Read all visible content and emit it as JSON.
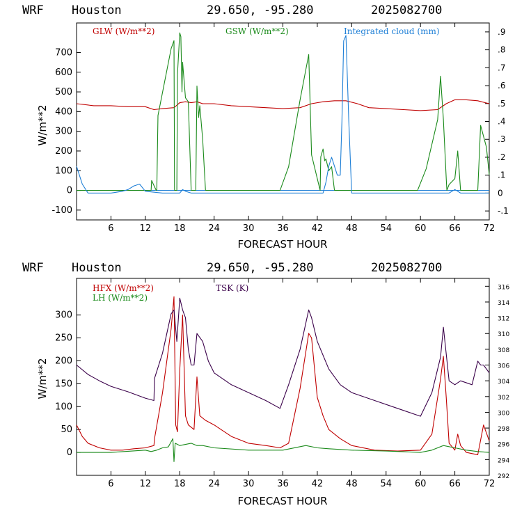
{
  "panels": [
    {
      "header": {
        "model": "WRF",
        "city": "Houston",
        "coords": "29.650, -95.280",
        "run": "2025082700"
      },
      "xlabel": "FORECAST HOUR",
      "ylabel": "W/m**2",
      "legend": {
        "glw": "GLW (W/m**2)",
        "gsw": "GSW (W/m**2)",
        "cloud": "Integrated cloud (mm)"
      }
    },
    {
      "header": {
        "model": "WRF",
        "city": "Houston",
        "coords": "29.650, -95.280",
        "run": "2025082700"
      },
      "xlabel": "FORECAST HOUR",
      "ylabel": "W/m**2",
      "legend": {
        "hfx": "HFX (W/m**2)",
        "lh": "LH  (W/m**2)",
        "tsk": "TSK (K)"
      }
    }
  ],
  "colors": {
    "red": "#c00000",
    "green": "#1a8a1a",
    "blue": "#1e7fd6",
    "purple": "#3a004a"
  },
  "chart_data": [
    {
      "type": "line",
      "title": "WRF Houston 29.650, -95.280 2025082700",
      "xlabel": "FORECAST HOUR",
      "ylabel": "W/m**2",
      "xlim": [
        0,
        72
      ],
      "ylim": [
        -150,
        850
      ],
      "xticks": [
        6,
        12,
        18,
        24,
        30,
        36,
        42,
        48,
        54,
        60,
        66,
        72
      ],
      "yticks": [
        -100,
        0,
        100,
        200,
        300,
        400,
        500,
        600,
        700
      ],
      "y2ticks": [
        -0.1,
        0,
        0.1,
        0.2,
        0.3,
        0.4,
        0.5,
        0.6,
        0.7,
        0.8,
        0.9
      ],
      "y2ticklabels": [
        "-.1",
        "0",
        ".1",
        ".2",
        ".3",
        ".4",
        ".5",
        ".6",
        ".7",
        ".8",
        ".9"
      ],
      "y2lim": [
        -0.15,
        0.95
      ],
      "series": [
        {
          "name": "GLW (W/m**2)",
          "color": "red",
          "axis": "left",
          "x": [
            0,
            3,
            6,
            9,
            12,
            13.5,
            15,
            17,
            18,
            19,
            20,
            21,
            22,
            24,
            27,
            30,
            33,
            36,
            39,
            41,
            43,
            45,
            47,
            49,
            51,
            54,
            57,
            60,
            63,
            64.5,
            66,
            68,
            70,
            72
          ],
          "y": [
            440,
            430,
            430,
            425,
            425,
            410,
            415,
            420,
            445,
            450,
            445,
            450,
            440,
            440,
            430,
            425,
            420,
            415,
            420,
            440,
            450,
            455,
            455,
            440,
            420,
            415,
            410,
            405,
            410,
            440,
            460,
            460,
            455,
            440
          ]
        },
        {
          "name": "GSW (W/m**2)",
          "color": "green",
          "axis": "left",
          "x": [
            0,
            13,
            13.1,
            13.9,
            14,
            14.2,
            16.5,
            17,
            17.1,
            17.5,
            17.6,
            18,
            18.2,
            18.4,
            18.5,
            19,
            19.5,
            20,
            20.8,
            21,
            21.3,
            21.5,
            22,
            22.3,
            22.5,
            23,
            35.5,
            37,
            39,
            40.5,
            41,
            42.5,
            42.6,
            43,
            43.3,
            43.5,
            44,
            44.5,
            45,
            59.5,
            61,
            63,
            63.5,
            64,
            64.5,
            64.6,
            65,
            66,
            66.5,
            67,
            70,
            70.5,
            71.5,
            72
          ],
          "y": [
            0,
            0,
            50,
            0,
            0,
            380,
            720,
            760,
            0,
            0,
            590,
            800,
            780,
            500,
            650,
            470,
            450,
            0,
            0,
            530,
            370,
            430,
            260,
            100,
            0,
            0,
            0,
            120,
            460,
            690,
            180,
            0,
            170,
            210,
            150,
            160,
            100,
            120,
            0,
            0,
            110,
            360,
            580,
            360,
            60,
            0,
            30,
            60,
            200,
            0,
            0,
            330,
            220,
            80
          ]
        },
        {
          "name": "Integrated cloud (mm)",
          "color": "blue",
          "axis": "right",
          "x": [
            0,
            1,
            2,
            4,
            6,
            8,
            9,
            10,
            11,
            12,
            15,
            17,
            18,
            18.5,
            19,
            20,
            24,
            30,
            35,
            38,
            41,
            43,
            43.5,
            44,
            44.5,
            45,
            45.5,
            46,
            46.3,
            46.6,
            47,
            47.5,
            48,
            54,
            60,
            65,
            66,
            67,
            72
          ],
          "y": [
            0.15,
            0.05,
            0,
            0,
            0,
            0.01,
            0.02,
            0.04,
            0.05,
            0.01,
            0,
            0,
            0,
            0.02,
            0.01,
            0,
            0,
            0,
            0,
            0,
            0,
            0,
            0.06,
            0.15,
            0.2,
            0.15,
            0.1,
            0.1,
            0.4,
            0.85,
            0.88,
            0.4,
            0,
            0,
            0,
            0,
            0.02,
            0,
            0
          ]
        }
      ]
    },
    {
      "type": "line",
      "title": "WRF Houston 29.650, -95.280 2025082700",
      "xlabel": "FORECAST HOUR",
      "ylabel": "W/m**2",
      "xlim": [
        0,
        72
      ],
      "ylim": [
        -50,
        380
      ],
      "xticks": [
        6,
        12,
        18,
        24,
        30,
        36,
        42,
        48,
        54,
        60,
        66,
        72
      ],
      "yticks": [
        0,
        50,
        100,
        150,
        200,
        250,
        300
      ],
      "y2ticks": [
        292,
        294,
        296,
        298,
        300,
        302,
        304,
        306,
        308,
        310,
        312,
        314,
        316
      ],
      "y2lim": [
        292,
        317
      ],
      "series": [
        {
          "name": "HFX (W/m**2)",
          "color": "red",
          "axis": "left",
          "x": [
            0,
            1,
            2,
            4,
            6,
            8,
            10,
            12,
            13.5,
            13.6,
            15,
            16.5,
            17,
            17.3,
            17.6,
            18,
            18.5,
            19,
            19.5,
            20.5,
            21,
            21.5,
            22.5,
            24,
            27,
            30,
            33,
            35.5,
            37,
            39,
            40.5,
            41,
            42,
            43,
            44,
            46,
            48,
            52,
            56,
            60,
            62,
            63.5,
            64,
            64.5,
            65,
            66,
            66.5,
            67,
            68,
            70,
            71,
            72
          ],
          "y": [
            60,
            35,
            20,
            10,
            5,
            5,
            8,
            10,
            15,
            30,
            130,
            270,
            340,
            60,
            45,
            180,
            300,
            80,
            60,
            50,
            165,
            80,
            70,
            60,
            35,
            20,
            15,
            10,
            20,
            140,
            260,
            250,
            120,
            80,
            50,
            30,
            15,
            5,
            3,
            5,
            40,
            160,
            210,
            120,
            20,
            5,
            40,
            15,
            0,
            -5,
            60,
            25
          ]
        },
        {
          "name": "LH  (W/m**2)",
          "color": "green",
          "axis": "left",
          "x": [
            0,
            6,
            12,
            13,
            14,
            15,
            16,
            16.8,
            17,
            17.2,
            18,
            20,
            21,
            22,
            24,
            30,
            36,
            40,
            42,
            44,
            48,
            54,
            60,
            62,
            64,
            66,
            68,
            70,
            72
          ],
          "y": [
            0,
            0,
            5,
            2,
            5,
            10,
            12,
            30,
            -20,
            20,
            15,
            20,
            15,
            15,
            10,
            5,
            5,
            15,
            10,
            8,
            5,
            3,
            0,
            5,
            15,
            10,
            5,
            2,
            0
          ]
        },
        {
          "name": "TSK (K)",
          "color": "purple",
          "axis": "right",
          "x": [
            0,
            2,
            4,
            6,
            9,
            12,
            13.5,
            13.6,
            15,
            16.5,
            17,
            17.5,
            18,
            18.5,
            19,
            19.5,
            20,
            20.5,
            21,
            21.5,
            22,
            23,
            24,
            27,
            30,
            33,
            35.5,
            37,
            39,
            40.5,
            41,
            42,
            44,
            46,
            48,
            52,
            56,
            60,
            62,
            63.5,
            64,
            65,
            66,
            67,
            69,
            70,
            70.5,
            71,
            72
          ],
          "y": [
            306,
            304.8,
            304,
            303.3,
            302.6,
            301.8,
            301.5,
            304.3,
            307.5,
            312.5,
            313,
            309,
            314.5,
            313,
            312,
            308,
            306,
            306,
            310,
            309.5,
            309,
            306.5,
            305,
            303.5,
            302.5,
            301.5,
            300.5,
            303.5,
            308,
            313,
            312,
            309,
            305.5,
            303.5,
            302.5,
            301.5,
            300.5,
            299.5,
            302.5,
            307,
            310.8,
            304,
            303.5,
            304,
            303.5,
            306.5,
            306,
            306,
            305
          ]
        }
      ]
    }
  ]
}
